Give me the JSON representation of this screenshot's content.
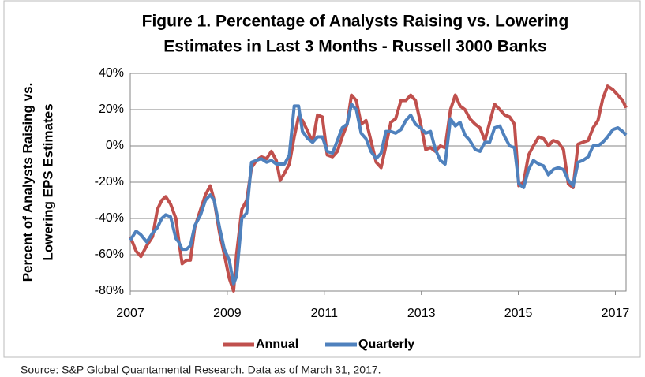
{
  "chart_data": {
    "type": "line",
    "title": [
      "Figure 1. Percentage of Analysts Raising vs. Lowering",
      "Estimates in Last 3 Months - Russell 3000 Banks"
    ],
    "y_label": [
      "Percent of Analysts Raising vs.",
      "Lowering EPS  Estimates"
    ],
    "source": "Source: S&P Global Quantamental Research. Data as of March 31, 2017.",
    "x": [
      2007.0,
      2007.12,
      2007.22,
      2007.34,
      2007.46,
      2007.56,
      2007.65,
      2007.73,
      2007.83,
      2007.94,
      2008.0,
      2008.07,
      2008.16,
      2008.24,
      2008.33,
      2008.45,
      2008.55,
      2008.65,
      2008.73,
      2008.84,
      2008.94,
      2009.04,
      2009.13,
      2009.19,
      2009.3,
      2009.4,
      2009.5,
      2009.6,
      2009.7,
      2009.81,
      2009.91,
      2010.01,
      2010.09,
      2010.18,
      2010.28,
      2010.38,
      2010.47,
      2010.55,
      2010.66,
      2010.76,
      2010.86,
      2010.96,
      2011.06,
      2011.17,
      2011.27,
      2011.37,
      2011.47,
      2011.56,
      2011.66,
      2011.76,
      2011.86,
      2011.96,
      2012.07,
      2012.17,
      2012.27,
      2012.37,
      2012.47,
      2012.58,
      2012.68,
      2012.78,
      2012.88,
      2012.98,
      2013.09,
      2013.19,
      2013.29,
      2013.39,
      2013.49,
      2013.6,
      2013.7,
      2013.8,
      2013.9,
      2014.0,
      2014.11,
      2014.21,
      2014.31,
      2014.41,
      2014.51,
      2014.62,
      2014.72,
      2014.82,
      2014.92,
      2015.01,
      2015.11,
      2015.21,
      2015.31,
      2015.42,
      2015.52,
      2015.62,
      2015.72,
      2015.82,
      2015.93,
      2016.03,
      2016.13,
      2016.23,
      2016.33,
      2016.44,
      2016.54,
      2016.64,
      2016.74,
      2016.84,
      2016.95,
      2017.05,
      2017.15,
      2017.22
    ],
    "series": [
      {
        "name": "Annual",
        "color": "#c0504d",
        "values": [
          -50,
          -58,
          -61,
          -55,
          -50,
          -35,
          -30,
          -28,
          -32,
          -40,
          -52,
          -65,
          -63,
          -63,
          -45,
          -35,
          -27,
          -22,
          -30,
          -48,
          -60,
          -73,
          -80,
          -60,
          -35,
          -30,
          -12,
          -8,
          -6,
          -7,
          -3,
          -8,
          -19,
          -15,
          -10,
          5,
          16,
          14,
          8,
          2,
          17,
          16,
          -5,
          -6,
          -3,
          5,
          12,
          28,
          25,
          12,
          14,
          3,
          -9,
          -12,
          0,
          13,
          15,
          25,
          25,
          28,
          25,
          13,
          -2,
          -1,
          -3,
          0,
          -1,
          20,
          28,
          22,
          20,
          15,
          12,
          10,
          3,
          13,
          23,
          20,
          17,
          16,
          12,
          -22,
          -20,
          -5,
          0,
          5,
          4,
          0,
          3,
          2,
          -2,
          -21,
          -23,
          1,
          2,
          3,
          10,
          14,
          26,
          33,
          31,
          28,
          25,
          21
        ]
      },
      {
        "name": "Quarterly",
        "color": "#4f81bd",
        "values": [
          -52,
          -47,
          -49,
          -53,
          -48,
          -45,
          -40,
          -38,
          -39,
          -51,
          -53,
          -57,
          -57,
          -55,
          -44,
          -38,
          -30,
          -27,
          -30,
          -45,
          -57,
          -63,
          -76,
          -72,
          -40,
          -37,
          -9,
          -8,
          -7,
          -9,
          -8,
          -10,
          -10,
          -10,
          -5,
          22,
          22,
          8,
          4,
          2,
          5,
          5,
          -3,
          -4,
          3,
          10,
          12,
          23,
          20,
          7,
          4,
          -3,
          -7,
          -4,
          8,
          8,
          7,
          9,
          14,
          17,
          12,
          10,
          7,
          8,
          -2,
          -8,
          -10,
          15,
          11,
          13,
          6,
          3,
          -2,
          -3,
          2,
          2,
          10,
          11,
          5,
          0,
          -1,
          -21,
          -23,
          -13,
          -8,
          -10,
          -11,
          -16,
          -13,
          -12,
          -13,
          -19,
          -22,
          -9,
          -8,
          -6,
          0,
          0,
          2,
          5,
          9,
          10,
          8,
          6
        ]
      }
    ],
    "xlim": [
      2007,
      2017.22
    ],
    "xticks": [
      2007,
      2009,
      2011,
      2013,
      2015,
      2017
    ],
    "ylim": [
      -80,
      40
    ],
    "yticks": [
      {
        "value": 40,
        "label": "40%"
      },
      {
        "value": 20,
        "label": "20%"
      },
      {
        "value": 0,
        "label": "0%"
      },
      {
        "value": -20,
        "label": "-20%"
      },
      {
        "value": -40,
        "label": "-40%"
      },
      {
        "value": -60,
        "label": "-60%"
      },
      {
        "value": -80,
        "label": "-80%"
      }
    ],
    "grid": true,
    "legend": "bottom"
  }
}
